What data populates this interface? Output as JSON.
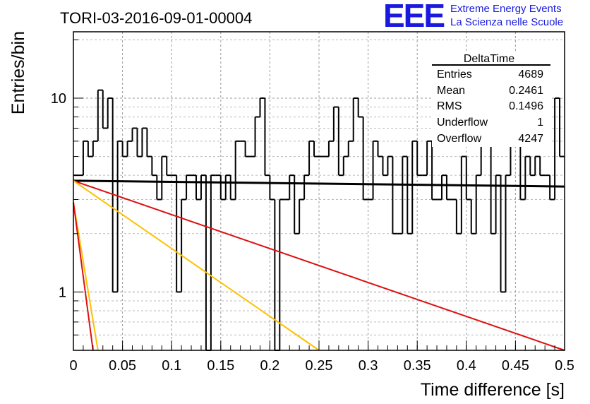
{
  "header": {
    "run_title": "TORI-03-2016-09-01-00004",
    "logo_mark": "EEE",
    "logo_line1": "Extreme Energy Events",
    "logo_line2": "La Scienza nelle Scuole",
    "logo_color": "#1a1adf"
  },
  "stats_box": {
    "title": "DeltaTime",
    "rows": [
      {
        "label": "Entries",
        "value": "4689"
      },
      {
        "label": "Mean",
        "value": "0.2461"
      },
      {
        "label": "RMS",
        "value": "0.1496"
      },
      {
        "label": "Underflow",
        "value": "1"
      },
      {
        "label": "Overflow",
        "value": "4247"
      }
    ]
  },
  "chart_data": {
    "type": "line",
    "xlabel": "Time difference [s]",
    "ylabel": "Entries/bin",
    "xlim": [
      0,
      0.5
    ],
    "ylim": [
      0.5,
      22
    ],
    "yscale": "log",
    "grid": true,
    "x_ticks": [
      "0",
      "0.05",
      "0.1",
      "0.15",
      "0.2",
      "0.25",
      "0.3",
      "0.35",
      "0.4",
      "0.45",
      "0.5"
    ],
    "y_ticks": [
      "1",
      "10"
    ],
    "histogram": {
      "bin_width": 0.005,
      "color": "#000000",
      "values": [
        4,
        4,
        6,
        5,
        6,
        11,
        7,
        10,
        1,
        6,
        5,
        6,
        7,
        5,
        7,
        5,
        4,
        3,
        5,
        4,
        4,
        1,
        3,
        4,
        4,
        3,
        4,
        0,
        4,
        4,
        3,
        4,
        3,
        6,
        6,
        5,
        5,
        8,
        10,
        4,
        3,
        0,
        3,
        3,
        4,
        2,
        3,
        4,
        6,
        5,
        5,
        5,
        6,
        9,
        4,
        5,
        6,
        10,
        8,
        3,
        3,
        6,
        5,
        4,
        5,
        2,
        2,
        5,
        2,
        6,
        4,
        4,
        6,
        3,
        3,
        4,
        3,
        3,
        2,
        5,
        3,
        2,
        4,
        6,
        6,
        2,
        4,
        1,
        4,
        6,
        6,
        3,
        5,
        4,
        5,
        4,
        4,
        3,
        10,
        5
      ]
    },
    "series": [
      {
        "color": "#000000",
        "x": [
          0,
          0.5
        ],
        "y": [
          3.75,
          3.5
        ]
      },
      {
        "color": "#dd1111",
        "x": [
          0,
          0.5
        ],
        "y": [
          3.75,
          0.5
        ]
      },
      {
        "color": "#ffc000",
        "x": [
          0,
          0.25
        ],
        "y": [
          3.75,
          0.5
        ]
      },
      {
        "color": "#ffc000",
        "x": [
          0,
          0.025
        ],
        "y": [
          2.9,
          0.5
        ]
      },
      {
        "color": "#dd1111",
        "x": [
          0,
          0.02
        ],
        "y": [
          2.9,
          0.5
        ]
      }
    ]
  }
}
